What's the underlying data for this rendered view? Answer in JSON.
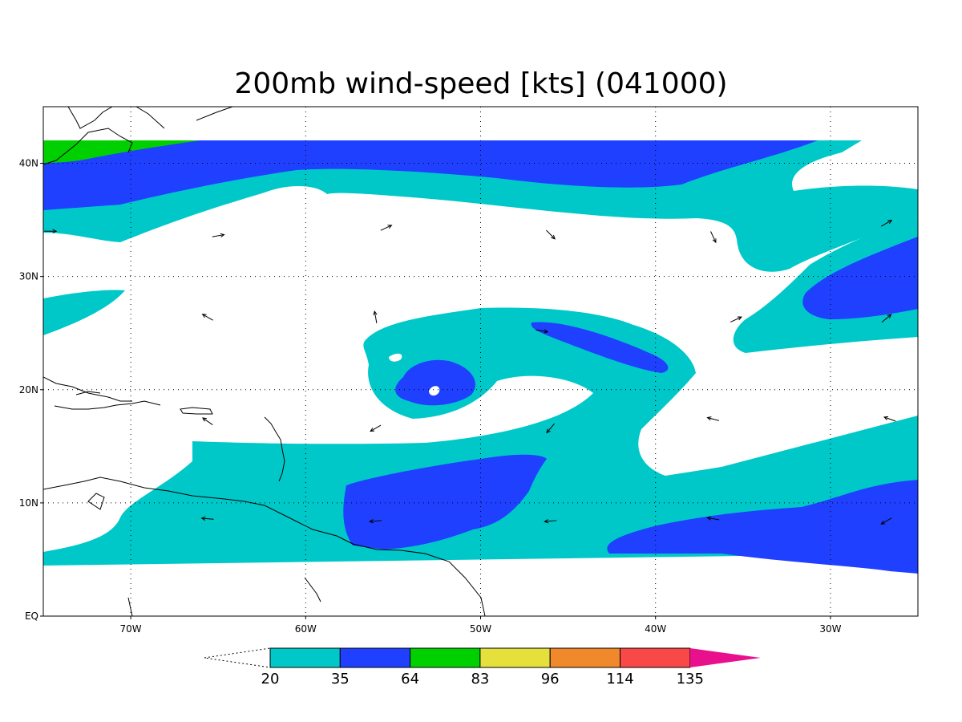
{
  "title": "200mb wind-speed [kts] (041000)",
  "lat_ticks": [
    {
      "value": 0,
      "label": "EQ"
    },
    {
      "value": 10,
      "label": "10N"
    },
    {
      "value": 20,
      "label": "20N"
    },
    {
      "value": 30,
      "label": "30N"
    },
    {
      "value": 40,
      "label": "40N"
    }
  ],
  "lon_ticks": [
    {
      "value": -70,
      "label": "70W"
    },
    {
      "value": -60,
      "label": "60W"
    },
    {
      "value": -50,
      "label": "50W"
    },
    {
      "value": -40,
      "label": "40W"
    },
    {
      "value": -30,
      "label": "30W"
    }
  ],
  "colorbar": {
    "labels": [
      "20",
      "35",
      "64",
      "83",
      "96",
      "114",
      "135"
    ],
    "colors": [
      "#00c8c8",
      "#2040ff",
      "#00d000",
      "#e6e03c",
      "#f0882c",
      "#f84848",
      "#e8108c"
    ]
  },
  "wind_vectors_lonlat_deg": [
    {
      "lon": -74.6,
      "lat": 34.0,
      "dir": 90
    },
    {
      "lon": -65.0,
      "lat": 33.6,
      "dir": 80
    },
    {
      "lon": -55.4,
      "lat": 34.3,
      "dir": 65
    },
    {
      "lon": -46.0,
      "lat": 33.7,
      "dir": 135
    },
    {
      "lon": -36.7,
      "lat": 33.5,
      "dir": 155
    },
    {
      "lon": -26.8,
      "lat": 34.7,
      "dir": 60
    },
    {
      "lon": -65.6,
      "lat": 26.4,
      "dir": 300
    },
    {
      "lon": -56.0,
      "lat": 26.4,
      "dir": 350
    },
    {
      "lon": -46.5,
      "lat": 25.2,
      "dir": 100
    },
    {
      "lon": -35.4,
      "lat": 26.2,
      "dir": 65
    },
    {
      "lon": -26.8,
      "lat": 26.3,
      "dir": 50
    },
    {
      "lon": -65.6,
      "lat": 17.2,
      "dir": 305
    },
    {
      "lon": -56.0,
      "lat": 16.6,
      "dir": 240
    },
    {
      "lon": -46.0,
      "lat": 16.6,
      "dir": 220
    },
    {
      "lon": -36.7,
      "lat": 17.4,
      "dir": 285
    },
    {
      "lon": -26.6,
      "lat": 17.4,
      "dir": 290
    },
    {
      "lon": -65.6,
      "lat": 8.6,
      "dir": 275
    },
    {
      "lon": -56.0,
      "lat": 8.4,
      "dir": 265
    },
    {
      "lon": -46.0,
      "lat": 8.4,
      "dir": 265
    },
    {
      "lon": -36.7,
      "lat": 8.6,
      "dir": 280
    },
    {
      "lon": -26.8,
      "lat": 8.4,
      "dir": 240
    }
  ]
}
